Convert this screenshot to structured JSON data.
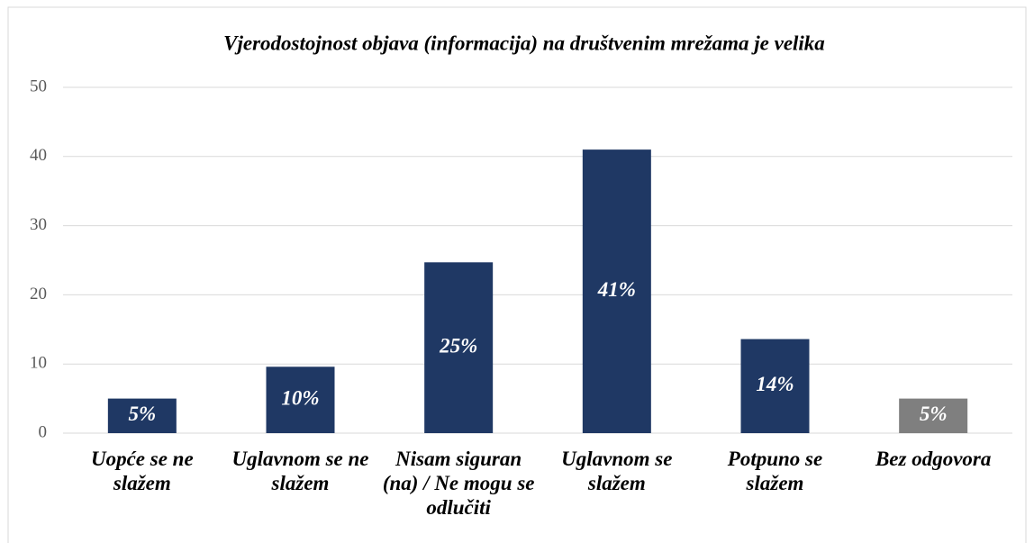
{
  "chart_data": {
    "type": "bar",
    "title": "Vjerodostojnost objava (informacija) na društvenim mrežama je velika",
    "categories": [
      "Uopće se ne slažem",
      "Uglavnom se ne slažem",
      "Nisam siguran (na) / Ne mogu se odlučiti",
      "Uglavnom se slažem",
      "Potpuno se slažem",
      "Bez odgovora"
    ],
    "values": [
      5,
      9.6,
      24.7,
      41,
      13.6,
      5
    ],
    "value_labels": [
      "5%",
      "10%",
      "25%",
      "41%",
      "14%",
      "5%"
    ],
    "colors": [
      "#1f3864",
      "#1f3864",
      "#1f3864",
      "#1f3864",
      "#1f3864",
      "#7f7f7f"
    ],
    "ylim": [
      0,
      50
    ],
    "yticks": [
      0,
      10,
      20,
      30,
      40,
      50
    ],
    "grid": true
  }
}
